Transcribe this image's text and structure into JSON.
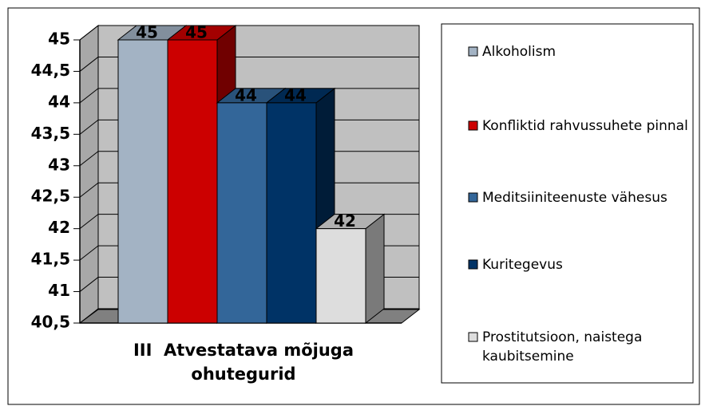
{
  "chart_data": {
    "type": "bar3d",
    "categories": [
      "III  Atvestatava mõjuga ohutegurid"
    ],
    "series": [
      {
        "name": "Alkoholism",
        "color": "#a3b3c4",
        "values": [
          45
        ]
      },
      {
        "name": "Konfliktid rahvussuhete pinnal",
        "color": "#cc0000",
        "values": [
          45
        ]
      },
      {
        "name": "Meditsiiniteenuste vähesus",
        "color": "#336699",
        "values": [
          44
        ]
      },
      {
        "name": "Kuritegevus",
        "color": "#003366",
        "values": [
          44
        ]
      },
      {
        "name": "Prostitutsioon, naistega kaubitsemine",
        "color": "#dddddd",
        "values": [
          42
        ]
      }
    ],
    "ylim": [
      40.5,
      45
    ],
    "yticks": [
      {
        "value": 40.5,
        "label": "40,5"
      },
      41,
      {
        "value": 41.5,
        "label": "41,5"
      },
      42,
      {
        "value": 42.5,
        "label": "42,5"
      },
      43,
      {
        "value": 43.5,
        "label": "43,5"
      },
      44,
      {
        "value": 44.5,
        "label": "44,5"
      },
      45
    ],
    "grid": true,
    "legend": "right"
  }
}
